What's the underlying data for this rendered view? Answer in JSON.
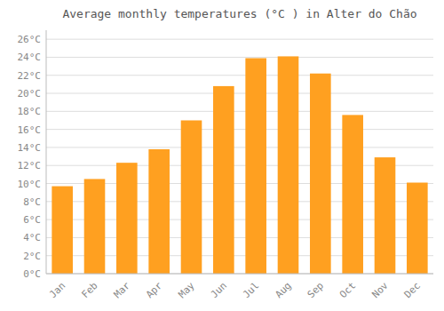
{
  "chart_data": {
    "type": "bar",
    "title": "Average monthly temperatures (°C ) in Alter do Chão",
    "categories": [
      "Jan",
      "Feb",
      "Mar",
      "Apr",
      "May",
      "Jun",
      "Jul",
      "Aug",
      "Sep",
      "Oct",
      "Nov",
      "Dec"
    ],
    "values": [
      9.7,
      10.5,
      12.3,
      13.8,
      17.0,
      20.8,
      23.9,
      24.1,
      22.2,
      17.6,
      12.9,
      10.1
    ],
    "color": "#FFA020",
    "ylim": [
      0,
      27
    ],
    "yticks": [
      {
        "value": 0,
        "label": "0°C"
      },
      {
        "value": 2,
        "label": "2°C"
      },
      {
        "value": 4,
        "label": "4°C"
      },
      {
        "value": 6,
        "label": "6°C"
      },
      {
        "value": 8,
        "label": "8°C"
      },
      {
        "value": 10,
        "label": "10°C"
      },
      {
        "value": 12,
        "label": "12°C"
      },
      {
        "value": 14,
        "label": "14°C"
      },
      {
        "value": 16,
        "label": "16°C"
      },
      {
        "value": 18,
        "label": "18°C"
      },
      {
        "value": 20,
        "label": "20°C"
      },
      {
        "value": 22,
        "label": "22°C"
      },
      {
        "value": 24,
        "label": "24°C"
      },
      {
        "value": 26,
        "label": "26°C"
      }
    ],
    "grid": true
  }
}
